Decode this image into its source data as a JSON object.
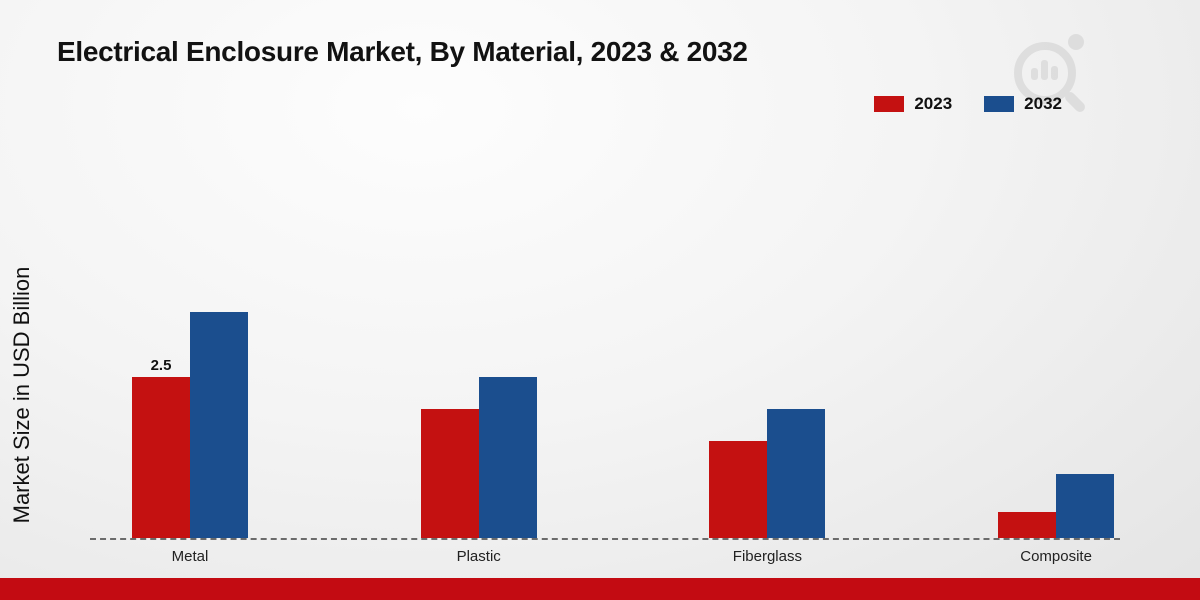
{
  "header": {
    "title": "Electrical Enclosure Market, By Material, 2023 & 2032"
  },
  "chart_data": {
    "type": "bar",
    "title": "Electrical Enclosure Market, By Material, 2023 & 2032",
    "xlabel": "",
    "ylabel": "Market Size in USD Billion",
    "categories": [
      "Metal",
      "Plastic",
      "Fiberglass",
      "Composite"
    ],
    "series": [
      {
        "name": "2023",
        "color": "#c41111",
        "values": [
          2.5,
          2.0,
          1.5,
          0.4
        ]
      },
      {
        "name": "2032",
        "color": "#1b4e8e",
        "values": [
          3.5,
          2.5,
          2.0,
          1.0
        ]
      }
    ],
    "ylim": [
      0,
      3.9
    ],
    "grid": false,
    "baseline_style": "dashed",
    "legend_position": "top-right",
    "annotations": [
      {
        "series": "2023",
        "category": "Metal",
        "text": "2.5"
      }
    ]
  },
  "footer": {
    "color": "#c30b12"
  }
}
